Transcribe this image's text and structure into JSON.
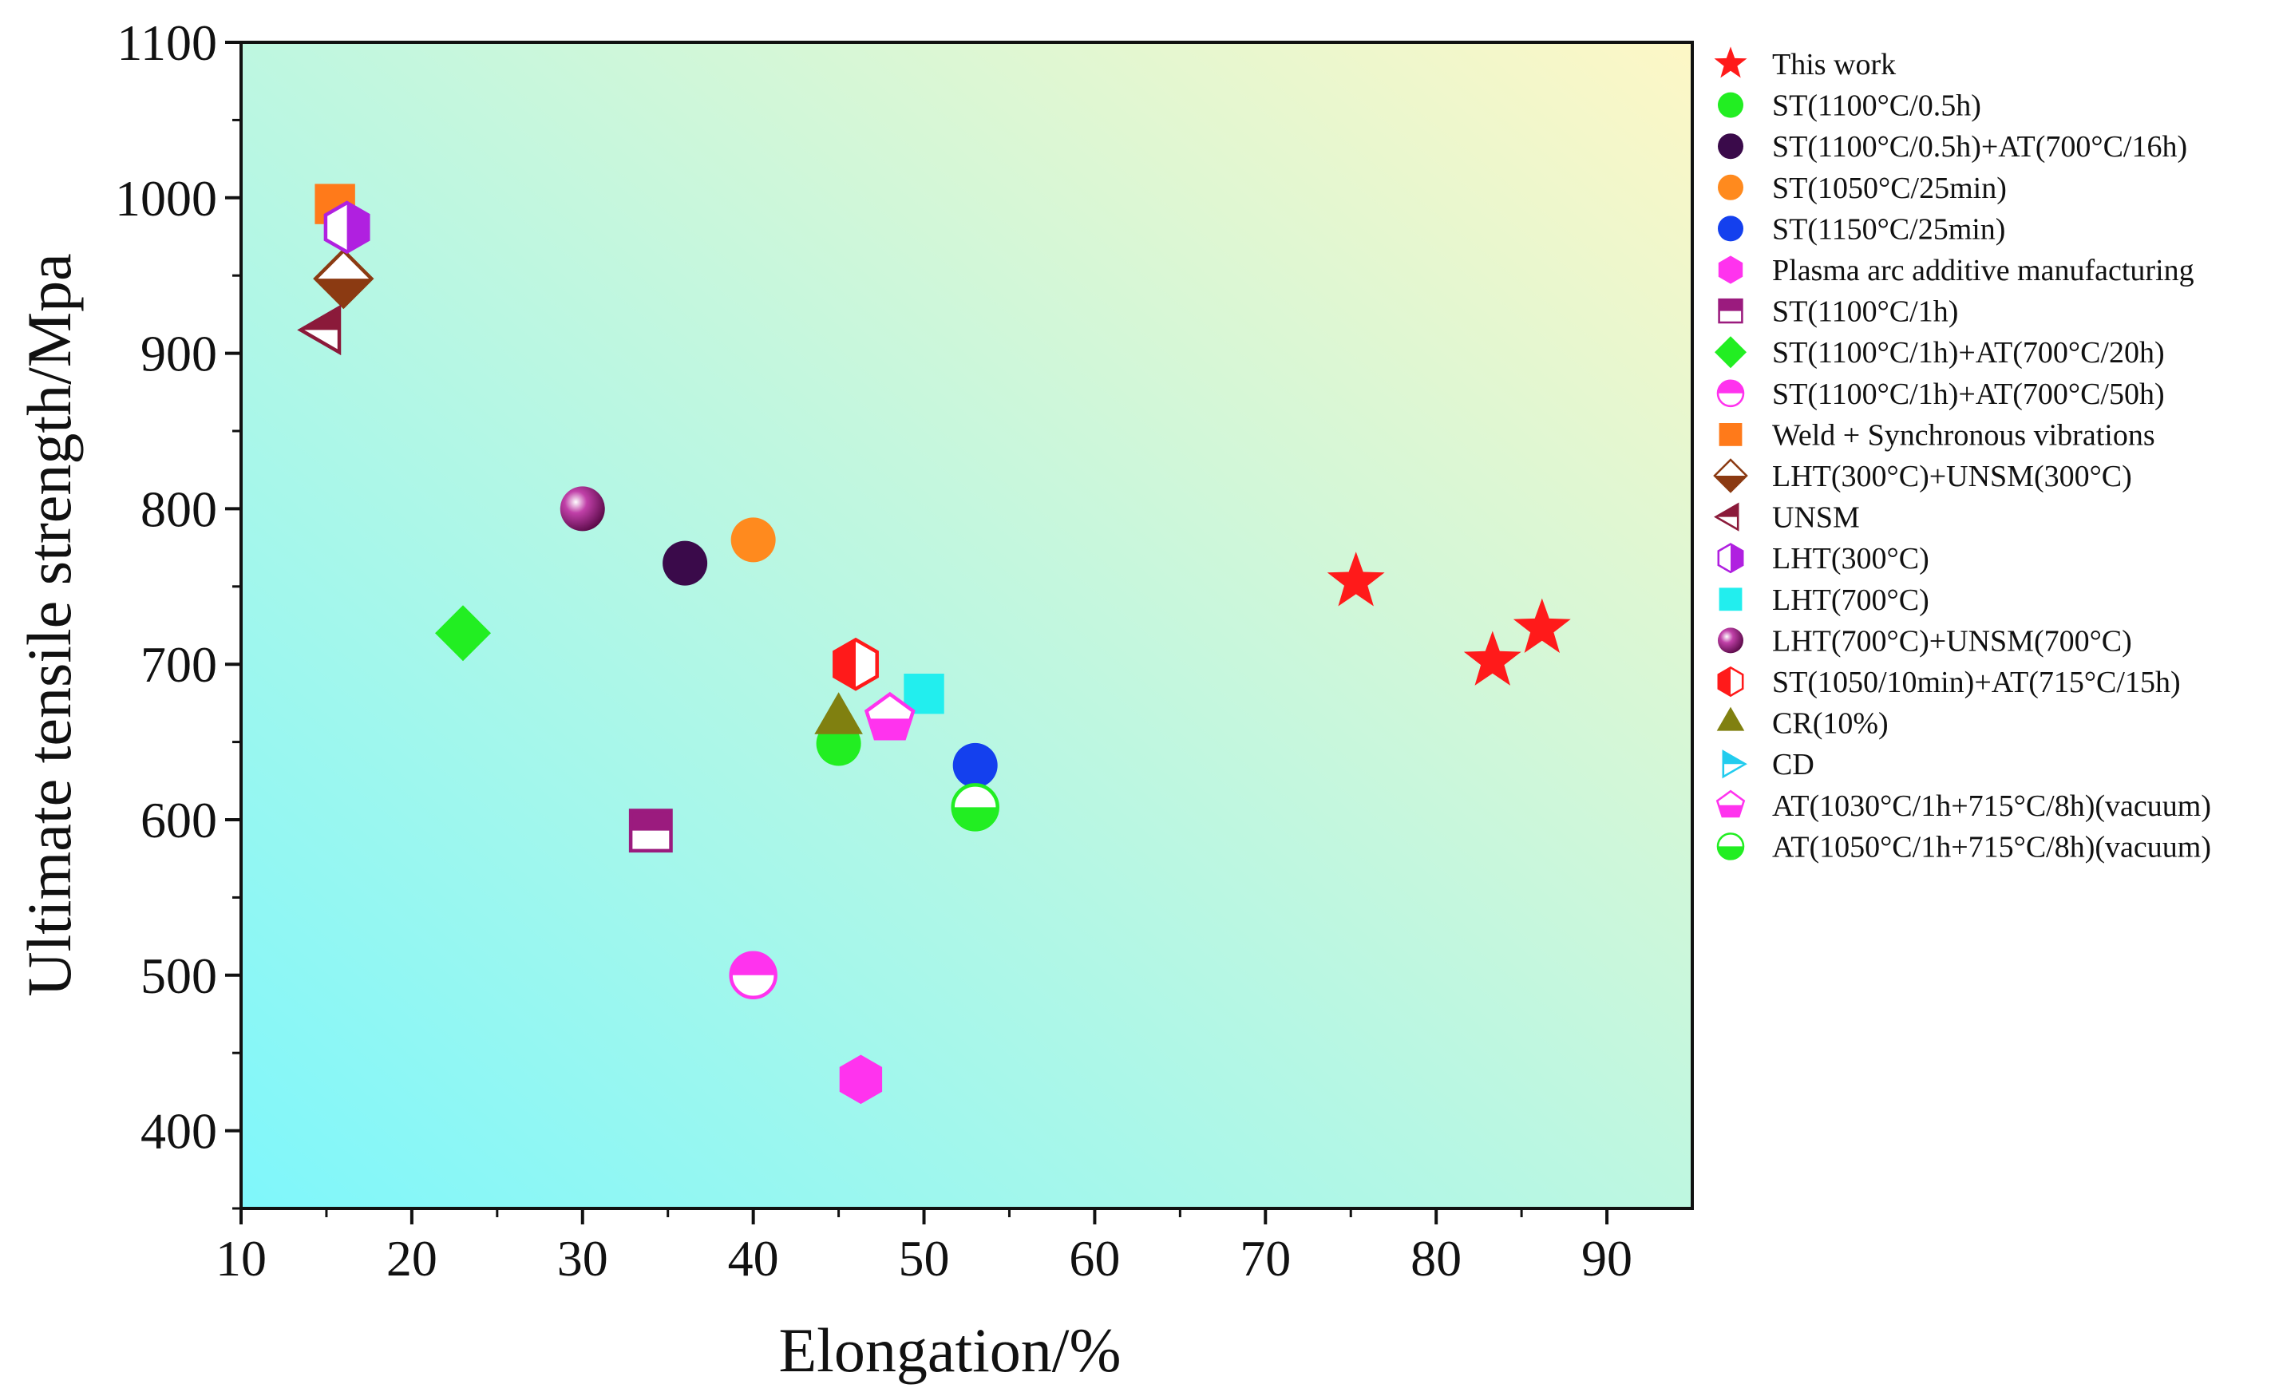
{
  "chart_data": {
    "type": "scatter",
    "title": "",
    "xlabel": "Elongation/%",
    "ylabel": "Ultimate tensile strength/Mpa",
    "xlim": [
      10,
      95
    ],
    "ylim": [
      350,
      1100
    ],
    "xticks": [
      10,
      20,
      30,
      40,
      50,
      60,
      70,
      80,
      90
    ],
    "yticks": [
      400,
      500,
      600,
      700,
      800,
      900,
      1000,
      1100
    ],
    "grid": false,
    "legend_position": "right",
    "background": {
      "from": "#7ff7fb",
      "to": "#fdf7c6",
      "direction": "bottom-left to top-right"
    },
    "series": [
      {
        "name": "This work",
        "marker": "star",
        "color": "#ff1a1a",
        "points": [
          [
            75.3,
            753
          ],
          [
            83.3,
            702
          ],
          [
            86.2,
            723
          ]
        ]
      },
      {
        "name": "ST(1100°C/0.5h)",
        "marker": "circle",
        "color": "#22ee22",
        "points": [
          [
            45,
            649
          ]
        ]
      },
      {
        "name": "ST(1100°C/0.5h)+AT(700°C/16h)",
        "marker": "circle",
        "color": "#3a0a4a",
        "points": [
          [
            36,
            765
          ]
        ]
      },
      {
        "name": "ST(1050°C/25min)",
        "marker": "circle",
        "color": "#ff8a1e",
        "points": [
          [
            40,
            780
          ]
        ]
      },
      {
        "name": "ST(1150°C/25min)",
        "marker": "circle",
        "color": "#1440ee",
        "points": [
          [
            53,
            635
          ]
        ]
      },
      {
        "name": "Plasma arc additive manufacturing",
        "marker": "hexagon",
        "color": "#ff33ee",
        "points": [
          [
            46.3,
            433
          ]
        ]
      },
      {
        "name": "ST(1100°C/1h)",
        "marker": "square-half-bottom",
        "color": "#9b1b7e",
        "points": [
          [
            34,
            593
          ]
        ]
      },
      {
        "name": "ST(1100°C/1h)+AT(700°C/20h)",
        "marker": "diamond",
        "color": "#22ee22",
        "points": [
          [
            23,
            720
          ]
        ]
      },
      {
        "name": "ST(1100°C/1h)+AT(700°C/50h)",
        "marker": "circle-half-top",
        "color": "#ff33ee",
        "points": [
          [
            40,
            500
          ]
        ]
      },
      {
        "name": "Weld + Synchronous vibrations",
        "marker": "square",
        "color": "#ff7a1a",
        "points": [
          [
            15.5,
            996
          ]
        ]
      },
      {
        "name": "LHT(300°C)+UNSM(300°C)",
        "marker": "diamond-half-bottom",
        "color": "#8b3a12",
        "points": [
          [
            16,
            948
          ]
        ]
      },
      {
        "name": "UNSM",
        "marker": "triangle-left-half",
        "color": "#8b1a3a",
        "points": [
          [
            15,
            915
          ]
        ]
      },
      {
        "name": "LHT(300°C)",
        "marker": "hexagon-half-right",
        "color": "#b020e0",
        "points": [
          [
            16.2,
            981
          ]
        ]
      },
      {
        "name": "LHT(700°C)",
        "marker": "square",
        "color": "#22eeee",
        "points": [
          [
            50,
            681
          ]
        ]
      },
      {
        "name": "LHT(700°C)+UNSM(700°C)",
        "marker": "sphere",
        "color": "#9b1b7e",
        "points": [
          [
            30,
            800
          ]
        ]
      },
      {
        "name": "ST(1050/10min)+AT(715°C/15h)",
        "marker": "hexagon-half-left",
        "color": "#ff1a1a",
        "points": [
          [
            46,
            700
          ]
        ]
      },
      {
        "name": "CR(10%)",
        "marker": "triangle-up",
        "color": "#808010",
        "points": [
          [
            45,
            664
          ]
        ]
      },
      {
        "name": "CD",
        "marker": "triangle-right-half",
        "color": "#22ccee",
        "points": []
      },
      {
        "name": "AT(1030°C/1h+715°C/8h)(vacuum)",
        "marker": "pentagon-half-bottom",
        "color": "#ff33ee",
        "points": [
          [
            48,
            665
          ]
        ]
      },
      {
        "name": "AT(1050°C/1h+715°C/8h)(vacuum)",
        "marker": "circle-half-bottom",
        "color": "#22ee22",
        "points": [
          [
            53,
            608
          ]
        ]
      }
    ]
  }
}
